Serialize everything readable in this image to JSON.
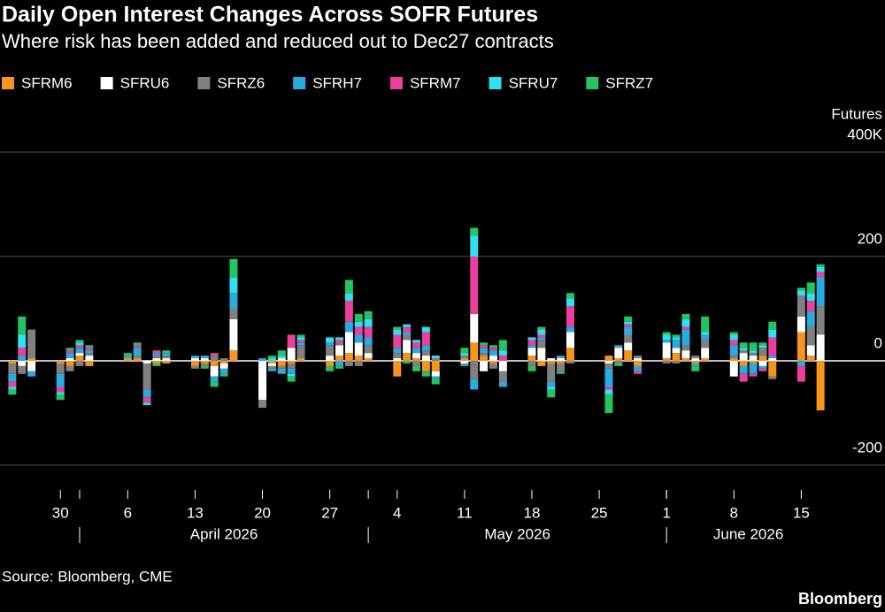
{
  "chart_data": {
    "type": "bar",
    "stacked": true,
    "title": "Daily Open Interest Changes Across SOFR Futures",
    "subtitle": "Where risk has been added and reduced out to Dec27 contracts",
    "y_axis_label": "Futures",
    "source": "Source: Bloomberg, CME",
    "credit": "Bloomberg",
    "x": [
      "2026-03-25",
      "2026-03-26",
      "2026-03-27",
      "2026-03-30",
      "2026-03-31",
      "2026-04-01",
      "2026-04-02",
      "2026-04-06",
      "2026-04-07",
      "2026-04-08",
      "2026-04-09",
      "2026-04-10",
      "2026-04-13",
      "2026-04-14",
      "2026-04-15",
      "2026-04-16",
      "2026-04-17",
      "2026-04-20",
      "2026-04-21",
      "2026-04-22",
      "2026-04-23",
      "2026-04-24",
      "2026-04-27",
      "2026-04-28",
      "2026-04-29",
      "2026-04-30",
      "2026-05-01",
      "2026-05-04",
      "2026-05-05",
      "2026-05-06",
      "2026-05-07",
      "2026-05-08",
      "2026-05-11",
      "2026-05-12",
      "2026-05-13",
      "2026-05-14",
      "2026-05-15",
      "2026-05-18",
      "2026-05-19",
      "2026-05-20",
      "2026-05-21",
      "2026-05-22",
      "2026-05-26",
      "2026-05-27",
      "2026-05-28",
      "2026-05-29",
      "2026-06-01",
      "2026-06-02",
      "2026-06-03",
      "2026-06-04",
      "2026-06-05",
      "2026-06-08",
      "2026-06-09",
      "2026-06-10",
      "2026-06-11",
      "2026-06-12",
      "2026-06-15",
      "2026-06-16",
      "2026-06-17"
    ],
    "xlim": [
      "2026-03-24",
      "2026-06-18"
    ],
    "xticks": [
      {
        "value": "2026-03-30",
        "label": "30"
      },
      {
        "value": "2026-04-06",
        "label": "6"
      },
      {
        "value": "2026-04-13",
        "label": "13"
      },
      {
        "value": "2026-04-20",
        "label": "20"
      },
      {
        "value": "2026-04-27",
        "label": "27"
      },
      {
        "value": "2026-05-04",
        "label": "4"
      },
      {
        "value": "2026-05-11",
        "label": "11"
      },
      {
        "value": "2026-05-18",
        "label": "18"
      },
      {
        "value": "2026-05-25",
        "label": "25"
      },
      {
        "value": "2026-06-01",
        "label": "1"
      },
      {
        "value": "2026-06-08",
        "label": "8"
      },
      {
        "value": "2026-06-15",
        "label": "15"
      }
    ],
    "month_ticks": [
      {
        "value": "2026-04-01",
        "label": "April 2026"
      },
      {
        "value": "2026-05-01",
        "label": "May 2026"
      },
      {
        "value": "2026-06-01",
        "label": "June 2026"
      }
    ],
    "ylim": [
      -200,
      400
    ],
    "yticks": [
      {
        "value": 400,
        "label": "400K"
      },
      200,
      0,
      -200
    ],
    "grid": true,
    "legend": "top-left",
    "series": [
      {
        "name": "SFRM6",
        "color": "#f7941d",
        "values": [
          -5,
          0,
          5,
          -5,
          -10,
          10,
          -10,
          5,
          5,
          0,
          -5,
          -5,
          -10,
          -5,
          -10,
          -5,
          20,
          0,
          -5,
          -10,
          -5,
          5,
          -10,
          10,
          15,
          10,
          5,
          -30,
          15,
          5,
          -20,
          -20,
          5,
          35,
          10,
          -5,
          0,
          10,
          -10,
          -5,
          -5,
          25,
          10,
          5,
          20,
          -10,
          5,
          15,
          5,
          -5,
          5,
          5,
          -10,
          -5,
          10,
          -30,
          55,
          10,
          -95
        ]
      },
      {
        "name": "SFRU6",
        "color": "#ffffff",
        "values": [
          0,
          -10,
          -20,
          0,
          5,
          5,
          10,
          0,
          0,
          -5,
          5,
          5,
          5,
          5,
          -20,
          -10,
          60,
          -75,
          -5,
          5,
          25,
          0,
          10,
          20,
          40,
          25,
          10,
          5,
          25,
          10,
          10,
          -10,
          -5,
          55,
          -20,
          10,
          -20,
          15,
          25,
          5,
          5,
          30,
          -5,
          20,
          15,
          5,
          30,
          10,
          15,
          5,
          20,
          -30,
          15,
          10,
          -10,
          5,
          30,
          20,
          50
        ]
      },
      {
        "name": "SFRZ6",
        "color": "#808080",
        "values": [
          -20,
          -15,
          55,
          -20,
          -10,
          -10,
          5,
          0,
          5,
          -50,
          5,
          5,
          -5,
          -5,
          10,
          5,
          20,
          -15,
          -5,
          -5,
          -10,
          25,
          20,
          5,
          -10,
          -10,
          15,
          10,
          10,
          -10,
          10,
          5,
          5,
          -35,
          5,
          -10,
          -20,
          -10,
          15,
          -35,
          -15,
          -5,
          -10,
          -5,
          15,
          5,
          -5,
          -5,
          10,
          5,
          15,
          5,
          5,
          5,
          15,
          -5,
          40,
          35,
          55
        ]
      },
      {
        "name": "SFRH7",
        "color": "#29abe2",
        "values": [
          -15,
          10,
          -10,
          -25,
          10,
          10,
          5,
          5,
          15,
          -15,
          5,
          5,
          5,
          5,
          -10,
          -10,
          30,
          5,
          -5,
          -10,
          -10,
          5,
          5,
          -10,
          20,
          15,
          15,
          10,
          5,
          10,
          10,
          -5,
          -5,
          -20,
          10,
          10,
          -10,
          5,
          5,
          -10,
          5,
          10,
          -35,
          5,
          15,
          -10,
          5,
          15,
          30,
          -5,
          10,
          20,
          -15,
          -20,
          -5,
          5,
          -10,
          30,
          55
        ]
      },
      {
        "name": "SFRM7",
        "color": "#ec3f9e",
        "values": [
          -10,
          15,
          0,
          -10,
          5,
          5,
          5,
          0,
          5,
          -10,
          5,
          0,
          0,
          0,
          5,
          0,
          0,
          0,
          0,
          0,
          25,
          5,
          0,
          5,
          40,
          15,
          20,
          25,
          10,
          10,
          25,
          0,
          0,
          110,
          5,
          5,
          10,
          10,
          5,
          0,
          0,
          40,
          -5,
          0,
          5,
          -5,
          0,
          0,
          5,
          0,
          0,
          10,
          -15,
          -5,
          -5,
          35,
          -30,
          20,
          10
        ]
      },
      {
        "name": "SFRU7",
        "color": "#2fe0f5",
        "values": [
          -5,
          25,
          0,
          -5,
          0,
          5,
          0,
          0,
          0,
          -5,
          0,
          0,
          0,
          0,
          0,
          0,
          30,
          0,
          5,
          5,
          -5,
          5,
          10,
          5,
          15,
          10,
          15,
          10,
          5,
          5,
          10,
          5,
          5,
          40,
          0,
          0,
          10,
          5,
          10,
          -5,
          0,
          15,
          -10,
          0,
          5,
          0,
          10,
          5,
          15,
          0,
          5,
          10,
          5,
          5,
          5,
          15,
          10,
          15,
          10
        ]
      },
      {
        "name": "SFRZ7",
        "color": "#22c55e",
        "values": [
          -10,
          35,
          0,
          -10,
          5,
          5,
          5,
          5,
          5,
          0,
          -5,
          5,
          0,
          -5,
          -10,
          -5,
          35,
          0,
          5,
          10,
          -10,
          5,
          -10,
          -5,
          25,
          15,
          15,
          5,
          -5,
          -10,
          -10,
          -10,
          10,
          15,
          5,
          5,
          20,
          -10,
          5,
          -15,
          -5,
          10,
          -35,
          -5,
          10,
          0,
          5,
          5,
          10,
          -10,
          30,
          5,
          10,
          15,
          5,
          15,
          5,
          20,
          5
        ]
      }
    ]
  }
}
